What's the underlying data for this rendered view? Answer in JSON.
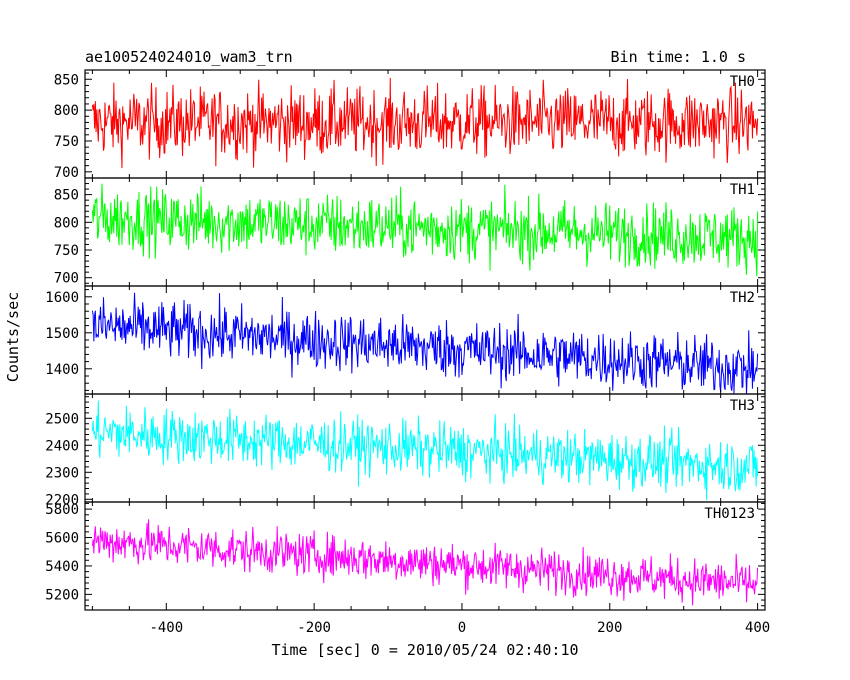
{
  "header": {
    "title": "ae100524024010_wam3_trn",
    "bin_time": "Bin time: 1.0 s"
  },
  "axes": {
    "xlabel": "Time [sec] 0 = 2010/05/24 02:40:10",
    "ylabel": "Counts/sec",
    "x_ticks": [
      "-400",
      "-200",
      "0",
      "200",
      "400"
    ]
  },
  "chart_data": {
    "type": "line",
    "xlabel": "Time [sec] 0 = 2010/05/24 02:40:10",
    "ylabel": "Counts/sec",
    "xlim": [
      -510,
      410
    ],
    "x_range": [
      -500,
      400
    ],
    "bin_time_s": 1.0,
    "panels": [
      {
        "name": "TH0",
        "color": "#ff0000",
        "ylim": [
          690,
          865
        ],
        "yticks": [
          700,
          750,
          800,
          850
        ],
        "trend_start": 780,
        "trend_end": 780,
        "noise_sd": 28
      },
      {
        "name": "TH1",
        "color": "#00ff00",
        "ylim": [
          685,
          880
        ],
        "yticks": [
          700,
          750,
          800,
          850
        ],
        "trend_start": 808,
        "trend_end": 772,
        "noise_sd": 28
      },
      {
        "name": "TH2",
        "color": "#0000ff",
        "ylim": [
          1330,
          1630
        ],
        "yticks": [
          1400,
          1500,
          1600
        ],
        "trend_start": 1520,
        "trend_end": 1400,
        "noise_sd": 40
      },
      {
        "name": "TH3",
        "color": "#00ffff",
        "ylim": [
          2190,
          2590
        ],
        "yticks": [
          2200,
          2300,
          2400,
          2500
        ],
        "trend_start": 2450,
        "trend_end": 2320,
        "noise_sd": 50
      },
      {
        "name": "TH0123",
        "color": "#ff00ff",
        "ylim": [
          5090,
          5850
        ],
        "yticks": [
          5200,
          5400,
          5600,
          5800
        ],
        "trend_start": 5580,
        "trend_end": 5270,
        "noise_sd": 75
      }
    ]
  }
}
